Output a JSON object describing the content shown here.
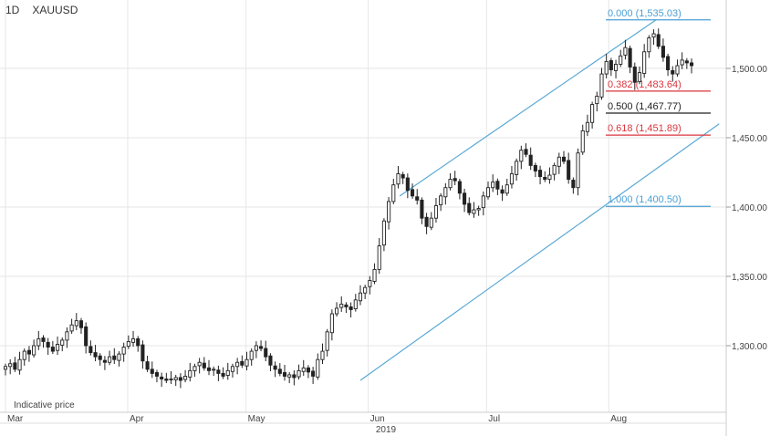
{
  "header": {
    "interval": "1D",
    "symbol": "XAUUSD"
  },
  "note": "Indicative price",
  "chart_data": {
    "type": "candlestick",
    "title": "",
    "xlabel": "",
    "ylabel": "",
    "y_axis_position": "right",
    "ylim": [
      1260,
      1545
    ],
    "y_ticks": [
      1300,
      1350,
      1400,
      1450,
      1500
    ],
    "y_tick_labels": [
      "1,300.00",
      "1,350.00",
      "1,400.00",
      "1,450.00",
      "1,500.00"
    ],
    "x_labels": [
      {
        "label": "Mar",
        "day": 0
      },
      {
        "label": "Apr",
        "day": 31
      },
      {
        "label": "May",
        "day": 61
      },
      {
        "label": "Jun",
        "day": 92
      },
      {
        "label": "Jul",
        "day": 122
      },
      {
        "label": "Aug",
        "day": 153
      }
    ],
    "year_label": "2019",
    "grid": true,
    "colors": {
      "grid": "#e6e6e6",
      "candle": "#222222",
      "channel": "#5aa9d6",
      "fib_blue": "#4a9fd4",
      "fib_red": "#d9363e",
      "fib_black": "#222222"
    },
    "channel": [
      {
        "from": [
          90,
          1275
        ],
        "to": [
          181,
          1460
        ]
      },
      {
        "from": [
          100,
          1408
        ],
        "to": [
          165,
          1535
        ]
      }
    ],
    "fibonacci": [
      {
        "label": "0.000 (1,535.03)",
        "price": 1535.03,
        "color": "blue"
      },
      {
        "label": "0.382 (1,483.64)",
        "price": 1483.64,
        "color": "red"
      },
      {
        "label": "0.500 (1,467.77)",
        "price": 1467.77,
        "color": "black"
      },
      {
        "label": "0.618 (1,451.89)",
        "price": 1451.89,
        "color": "red"
      },
      {
        "label": "1.000 (1,400.50)",
        "price": 1400.5,
        "color": "blue"
      }
    ],
    "closes": [
      1285,
      1287,
      1283,
      1290,
      1296,
      1294,
      1300,
      1305,
      1303,
      1299,
      1296,
      1301,
      1304,
      1310,
      1315,
      1318,
      1313,
      1300,
      1295,
      1292,
      1290,
      1288,
      1292,
      1290,
      1294,
      1299,
      1303,
      1305,
      1300,
      1289,
      1283,
      1280,
      1278,
      1276,
      1275,
      1276,
      1277,
      1275,
      1278,
      1282,
      1285,
      1288,
      1284,
      1282,
      1283,
      1280,
      1278,
      1282,
      1285,
      1288,
      1286,
      1290,
      1296,
      1300,
      1298,
      1292,
      1286,
      1283,
      1280,
      1278,
      1279,
      1277,
      1282,
      1284,
      1281,
      1278,
      1290,
      1296,
      1310,
      1323,
      1327,
      1330,
      1328,
      1326,
      1333,
      1338,
      1342,
      1347,
      1355,
      1372,
      1390,
      1404,
      1416,
      1424,
      1421,
      1412,
      1408,
      1405,
      1392,
      1386,
      1392,
      1401,
      1408,
      1414,
      1420,
      1419,
      1410,
      1402,
      1396,
      1398,
      1399,
      1408,
      1414,
      1418,
      1413,
      1410,
      1416,
      1424,
      1433,
      1441,
      1438,
      1430,
      1426,
      1422,
      1420,
      1423,
      1430,
      1436,
      1433,
      1420,
      1414,
      1439,
      1455,
      1461,
      1474,
      1480,
      1496,
      1505,
      1499,
      1503,
      1509,
      1515,
      1501,
      1490,
      1497,
      1512,
      1522,
      1525,
      1516,
      1508,
      1499,
      1496,
      1502,
      1506,
      1504,
      1502
    ]
  }
}
